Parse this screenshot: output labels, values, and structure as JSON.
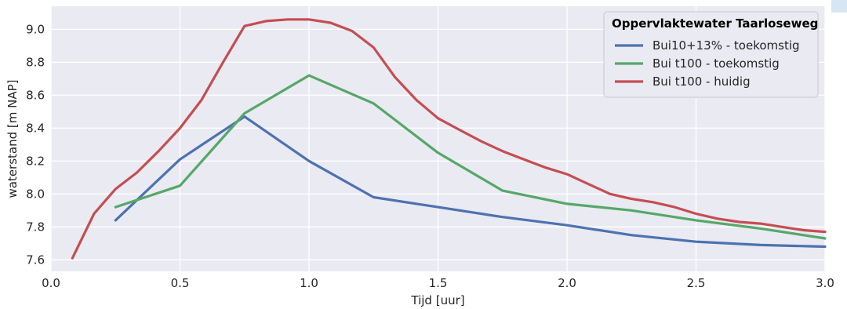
{
  "colors": {
    "plot_background": "#eaeaf2",
    "grid": "#ffffff",
    "series_blue": "#4c72b0",
    "series_green": "#55a868",
    "series_red": "#c44e52"
  },
  "chart_data": {
    "type": "line",
    "xlabel": "Tijd [uur]",
    "ylabel": "waterstand [m NAP]",
    "xlim": [
      0.0,
      3.0
    ],
    "ylim": [
      7.53,
      9.14
    ],
    "xticks": [
      "0.0",
      "0.5",
      "1.0",
      "1.5",
      "2.0",
      "2.5",
      "3.0"
    ],
    "xtick_values": [
      0.0,
      0.5,
      1.0,
      1.5,
      2.0,
      2.5,
      3.0
    ],
    "yticks": [
      "7.6",
      "7.8",
      "8.0",
      "8.2",
      "8.4",
      "8.6",
      "8.8",
      "9.0"
    ],
    "ytick_values": [
      7.6,
      7.8,
      8.0,
      8.2,
      8.4,
      8.6,
      8.8,
      9.0
    ],
    "grid": true,
    "legend": {
      "title": "Oppervlaktewater Taarloseweg",
      "placement": "top-right"
    },
    "series": [
      {
        "name": "Bui10+13% - toekomstig",
        "color": "#4c72b0",
        "x": [
          0.25,
          0.5,
          0.75,
          1.0,
          1.25,
          1.5,
          1.75,
          2.0,
          2.25,
          2.5,
          2.75,
          3.0
        ],
        "y": [
          7.84,
          8.21,
          8.47,
          8.2,
          7.98,
          7.92,
          7.86,
          7.81,
          7.75,
          7.71,
          7.69,
          7.68
        ]
      },
      {
        "name": "Bui t100 - toekomstig",
        "color": "#55a868",
        "x": [
          0.25,
          0.5,
          0.75,
          1.0,
          1.25,
          1.5,
          1.75,
          2.0,
          2.25,
          2.5,
          2.75,
          3.0
        ],
        "y": [
          7.92,
          8.05,
          8.49,
          8.72,
          8.55,
          8.25,
          8.02,
          7.94,
          7.9,
          7.84,
          7.79,
          7.73
        ]
      },
      {
        "name": "Bui t100 - huidig",
        "color": "#c44e52",
        "x": [
          0.083,
          0.167,
          0.25,
          0.333,
          0.417,
          0.5,
          0.583,
          0.667,
          0.75,
          0.833,
          0.917,
          1.0,
          1.083,
          1.167,
          1.25,
          1.333,
          1.417,
          1.5,
          1.583,
          1.667,
          1.75,
          1.833,
          1.917,
          2.0,
          2.083,
          2.167,
          2.25,
          2.333,
          2.417,
          2.5,
          2.583,
          2.667,
          2.75,
          2.833,
          2.917,
          3.0
        ],
        "y": [
          7.61,
          7.88,
          8.03,
          8.13,
          8.26,
          8.4,
          8.57,
          8.8,
          9.02,
          9.05,
          9.06,
          9.06,
          9.04,
          8.99,
          8.89,
          8.71,
          8.57,
          8.46,
          8.39,
          8.32,
          8.26,
          8.21,
          8.16,
          8.12,
          8.06,
          8.0,
          7.97,
          7.95,
          7.92,
          7.88,
          7.85,
          7.83,
          7.82,
          7.8,
          7.78,
          7.77
        ]
      }
    ]
  }
}
